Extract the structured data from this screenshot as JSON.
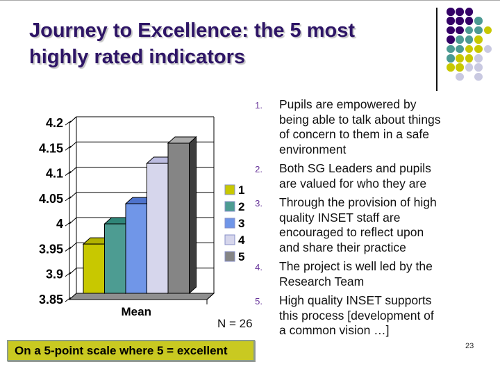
{
  "slide": {
    "title_lines": [
      "Journey to Excellence: the 5 most",
      "highly rated indicators"
    ],
    "title_color": "#2E1566",
    "n_label": "N = 26",
    "footnote": "On a 5-point scale where 5 = excellent",
    "footnote_bg": "#C9C921",
    "footnote_border": "#8C9C8C",
    "page_number": "23"
  },
  "indicators": [
    {
      "num": "1.",
      "text": "Pupils are empowered by\nbeing able to talk about things\nof concern to them in a safe\nenvironment"
    },
    {
      "num": "2.",
      "text": "Both SG Leaders and pupils\nare valued for who they are"
    },
    {
      "num": "3.",
      "text": "Through the provision of high\nquality INSET staff are\nencouraged to reflect upon\nand share their practice"
    },
    {
      "num": "4.",
      "text": "The project is well led by the\nResearch Team"
    },
    {
      "num": "5.",
      "text": "High quality INSET supports\nthis process [development of\na common vision …]"
    }
  ],
  "chart_data": {
    "type": "bar",
    "style": "3d",
    "categories": [
      "Mean"
    ],
    "xlabel": "Mean",
    "ylabel": "",
    "ylim": [
      3.85,
      4.2
    ],
    "ytick_step": 0.05,
    "yticks": [
      "4.2",
      "4.15",
      "4.1",
      "4.05",
      "4",
      "3.95",
      "3.9",
      "3.85"
    ],
    "grid": true,
    "legend_position": "right",
    "series": [
      {
        "name": "1",
        "values": [
          3.96
        ],
        "color": "#C8C800",
        "top": "#B2B200",
        "side": "#6E6E00"
      },
      {
        "name": "2",
        "values": [
          4.0
        ],
        "color": "#4D9C92",
        "top": "#2F8578",
        "side": "#1F6A5E"
      },
      {
        "name": "3",
        "values": [
          4.04
        ],
        "color": "#7096E8",
        "top": "#4E73CC",
        "side": "#3A5CB0"
      },
      {
        "name": "4",
        "values": [
          4.12
        ],
        "color": "#D6D6EC",
        "top": "#BCBCE0",
        "side": "#9898C8"
      },
      {
        "name": "5",
        "values": [
          4.16
        ],
        "color": "#858585",
        "top": "#ABABAB",
        "side": "#3D3D3D"
      }
    ],
    "floor_color": "#8F8F8F",
    "legend_border": "#8890C8"
  },
  "decoration": {
    "dot_colors": {
      "P": "#330066",
      "T": "#4C9A93",
      "Y": "#C8C800",
      "L": "#C9C9E1"
    },
    "dot_rows": [
      [
        "P",
        "P",
        "P"
      ],
      [
        "P",
        "P",
        "P",
        "T"
      ],
      [
        "P",
        "P",
        "T",
        "T",
        "Y"
      ],
      [
        "P",
        "T",
        "T",
        "Y"
      ],
      [
        "T",
        "T",
        "Y",
        "Y",
        "L"
      ],
      [
        "T",
        "Y",
        "Y",
        "L"
      ],
      [
        "Y",
        "Y",
        "L",
        "L"
      ],
      [
        null,
        "L",
        null,
        "L"
      ]
    ]
  }
}
